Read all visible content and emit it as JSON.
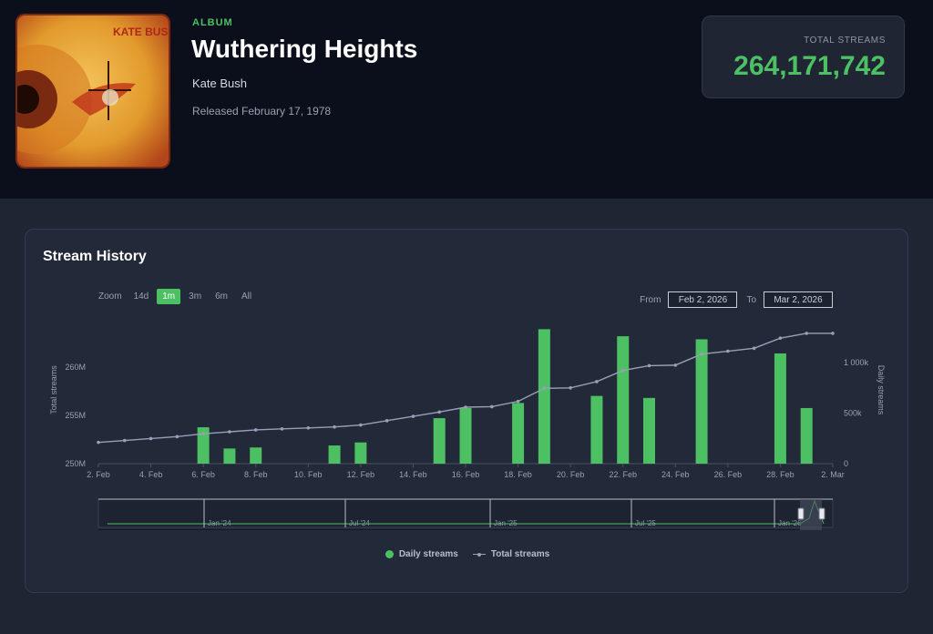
{
  "album": {
    "kind": "ALBUM",
    "title": "Wuthering Heights",
    "artist": "Kate Bush",
    "release": "Released February 17, 1978",
    "cover_text": "KATE BUSH"
  },
  "total": {
    "label": "TOTAL STREAMS",
    "value": "264,171,742"
  },
  "panel": {
    "title": "Stream History",
    "zoom_label": "Zoom",
    "zoom_options": [
      "14d",
      "1m",
      "3m",
      "6m",
      "All"
    ],
    "zoom_selected": "1m",
    "from_label": "From",
    "from_value": "Feb 2, 2026",
    "to_label": "To",
    "to_value": "Mar 2, 2026",
    "legend_daily": "Daily streams",
    "legend_total": "Total streams"
  },
  "colors": {
    "bar": "#4cc062",
    "line": "#9a9fb8",
    "accent": "#4cc062"
  },
  "chart_data": {
    "type": "bar",
    "x_ticks": [
      "2. Feb",
      "4. Feb",
      "6. Feb",
      "8. Feb",
      "10. Feb",
      "12. Feb",
      "14. Feb",
      "16. Feb",
      "18. Feb",
      "20. Feb",
      "22. Feb",
      "24. Feb",
      "26. Feb",
      "28. Feb",
      "2. Mar"
    ],
    "y_left_label": "Total streams",
    "y_left_ticks": [
      "250M",
      "255M",
      "260M"
    ],
    "y_left_values": [
      250000000,
      255000000,
      260000000
    ],
    "y_right_label": "Daily streams",
    "y_right_ticks": [
      "0",
      "500k",
      "1 000k"
    ],
    "y_right_values": [
      0,
      500000,
      1000000
    ],
    "series": [
      {
        "name": "Daily streams",
        "type": "bar",
        "axis": "right",
        "x": [
          "2026-02-06",
          "2026-02-07",
          "2026-02-08",
          "2026-02-11",
          "2026-02-12",
          "2026-02-15",
          "2026-02-16",
          "2026-02-18",
          "2026-02-19",
          "2026-02-21",
          "2026-02-22",
          "2026-02-23",
          "2026-02-25",
          "2026-02-28",
          "2026-03-01"
        ],
        "values": [
          360000,
          150000,
          160000,
          180000,
          210000,
          450000,
          550000,
          600000,
          1330000,
          670000,
          1260000,
          650000,
          1230000,
          1090000,
          550000
        ]
      },
      {
        "name": "Total streams",
        "type": "line",
        "axis": "left",
        "x": [
          "2026-02-02",
          "2026-02-03",
          "2026-02-04",
          "2026-02-05",
          "2026-02-06",
          "2026-02-07",
          "2026-02-08",
          "2026-02-09",
          "2026-02-10",
          "2026-02-11",
          "2026-02-12",
          "2026-02-13",
          "2026-02-14",
          "2026-02-15",
          "2026-02-16",
          "2026-02-17",
          "2026-02-18",
          "2026-02-19",
          "2026-02-20",
          "2026-02-21",
          "2026-02-22",
          "2026-02-23",
          "2026-02-24",
          "2026-02-25",
          "2026-02-26",
          "2026-02-27",
          "2026-02-28",
          "2026-03-01",
          "2026-03-02"
        ],
        "values": [
          252200000,
          252400000,
          252600000,
          252800000,
          253100000,
          253300000,
          253500000,
          253600000,
          253700000,
          253800000,
          254000000,
          254450000,
          254900000,
          255350000,
          255850000,
          255900000,
          256450000,
          257800000,
          257850000,
          258500000,
          259650000,
          260150000,
          260200000,
          261350000,
          261650000,
          261950000,
          263000000,
          263500000,
          263500000
        ]
      }
    ],
    "navigator_ticks": [
      "Jan '24",
      "Jul '24",
      "Jan '25",
      "Jul '25",
      "Jan '26"
    ],
    "legend_position": "bottom-center",
    "grid": false
  }
}
